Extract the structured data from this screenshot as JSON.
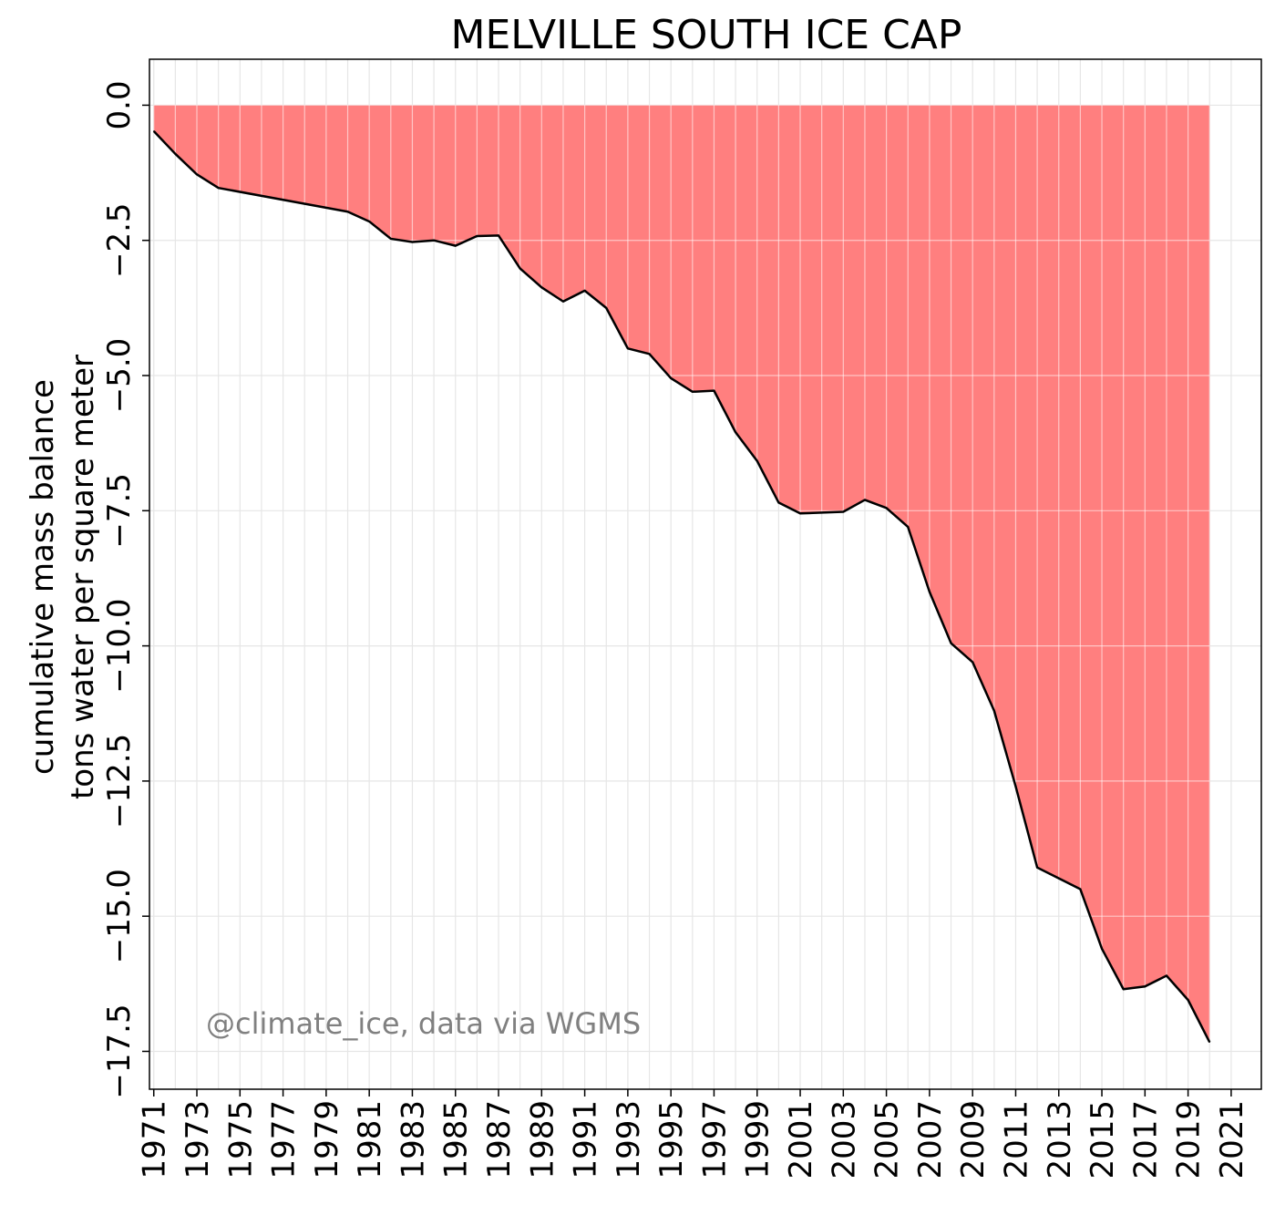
{
  "chart_data": {
    "type": "area",
    "title": "MELVILLE SOUTH ICE CAP",
    "ylabel_line1": "cumulative mass balance",
    "ylabel_line2": "tons water per square meter",
    "xlabel": "",
    "annotation": "@climate_ice, data via WGMS",
    "xlim": [
      1970.8,
      2022.4
    ],
    "ylim": [
      -18.2,
      0.85
    ],
    "grid": true,
    "fill_color": "#ff7f7f",
    "line_color": "#000000",
    "x_ticks": [
      1971,
      1973,
      1975,
      1977,
      1979,
      1981,
      1983,
      1985,
      1987,
      1989,
      1991,
      1993,
      1995,
      1997,
      1999,
      2001,
      2003,
      2005,
      2007,
      2009,
      2011,
      2013,
      2015,
      2017,
      2019,
      2021
    ],
    "x_tick_labels": [
      "1971",
      "1973",
      "1975",
      "1977",
      "1979",
      "1981",
      "1983",
      "1985",
      "1987",
      "1989",
      "1991",
      "1993",
      "1995",
      "1997",
      "1999",
      "2001",
      "2003",
      "2005",
      "2007",
      "2009",
      "2011",
      "2013",
      "2015",
      "2017",
      "2019",
      "2021"
    ],
    "y_ticks": [
      0.0,
      -2.5,
      -5.0,
      -7.5,
      -10.0,
      -12.5,
      -15.0,
      -17.5
    ],
    "y_tick_labels": [
      "0.0",
      "−2.5",
      "−5.0",
      "−7.5",
      "−10.0",
      "−12.5",
      "−15.0",
      "−17.5"
    ],
    "x_minor_grid": [
      1972,
      1974,
      1976,
      1978,
      1980,
      1982,
      1984,
      1986,
      1988,
      1990,
      1992,
      1994,
      1996,
      1998,
      2000,
      2002,
      2004,
      2006,
      2008,
      2010,
      2012,
      2014,
      2016,
      2018,
      2020
    ],
    "x": [
      1971,
      1972,
      1973,
      1974,
      1980,
      1981,
      1982,
      1983,
      1984,
      1985,
      1986,
      1987,
      1988,
      1989,
      1990,
      1991,
      1992,
      1993,
      1994,
      1995,
      1996,
      1997,
      1998,
      1999,
      2000,
      2001,
      2003,
      2004,
      2005,
      2006,
      2007,
      2008,
      2009,
      2010,
      2011,
      2012,
      2013,
      2014,
      2015,
      2016,
      2017,
      2018,
      2019,
      2020
    ],
    "series": [
      {
        "values": [
          -0.48,
          -0.9,
          -1.28,
          -1.53,
          -1.97,
          -2.15,
          -2.47,
          -2.53,
          -2.5,
          -2.6,
          -2.42,
          -2.41,
          -3.02,
          -3.37,
          -3.63,
          -3.43,
          -3.75,
          -4.5,
          -4.6,
          -5.05,
          -5.3,
          -5.28,
          -6.05,
          -6.58,
          -7.35,
          -7.55,
          -7.52,
          -7.3,
          -7.45,
          -7.8,
          -9.0,
          -9.95,
          -10.3,
          -11.2,
          -12.6,
          -14.1,
          -14.3,
          -14.5,
          -15.6,
          -16.35,
          -16.3,
          -16.1,
          -16.55,
          -17.33
        ]
      }
    ]
  }
}
